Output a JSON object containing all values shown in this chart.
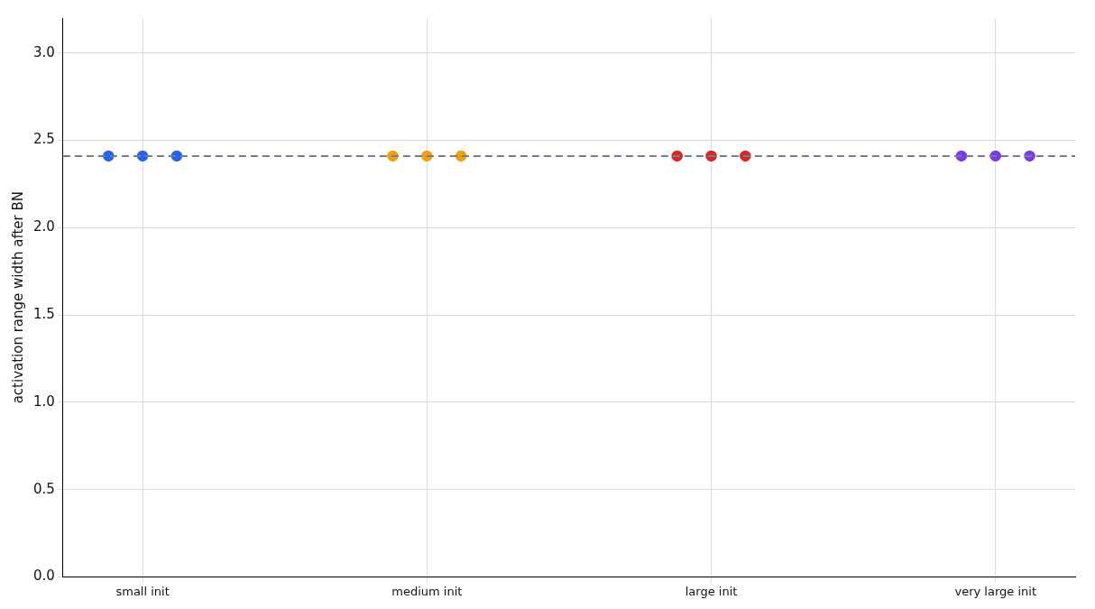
{
  "chart_data": {
    "type": "scatter",
    "ylabel": "activation range width after BN",
    "categories": [
      "small init",
      "medium init",
      "large init",
      "very large init"
    ],
    "series": [
      {
        "values": [
          2.41,
          2.41,
          2.41,
          2.41
        ],
        "colors": [
          "#2563eb",
          "#f59e0b",
          "#dc2626",
          "#7c3aed"
        ]
      },
      {
        "values": [
          2.41,
          2.41,
          2.41,
          2.41
        ],
        "colors": [
          "#2563eb",
          "#f59e0b",
          "#dc2626",
          "#7c3aed"
        ]
      },
      {
        "values": [
          2.41,
          2.41,
          2.41,
          2.41
        ],
        "colors": [
          "#2563eb",
          "#f59e0b",
          "#dc2626",
          "#7c3aed"
        ]
      }
    ],
    "ylim": [
      0,
      3.2
    ],
    "yticks": [
      {
        "value": 0,
        "label": "0.0"
      },
      0.5,
      {
        "value": 1,
        "label": "1.0"
      },
      1.5,
      {
        "value": 2,
        "label": "2.0"
      },
      2.5,
      {
        "value": 3,
        "label": "3.0"
      }
    ],
    "ref_lines": [
      {
        "axis": "y",
        "value": 2.41,
        "color": "#708090",
        "line_style": "dashed"
      }
    ],
    "grid": true,
    "legend": false,
    "marker": "circle"
  }
}
